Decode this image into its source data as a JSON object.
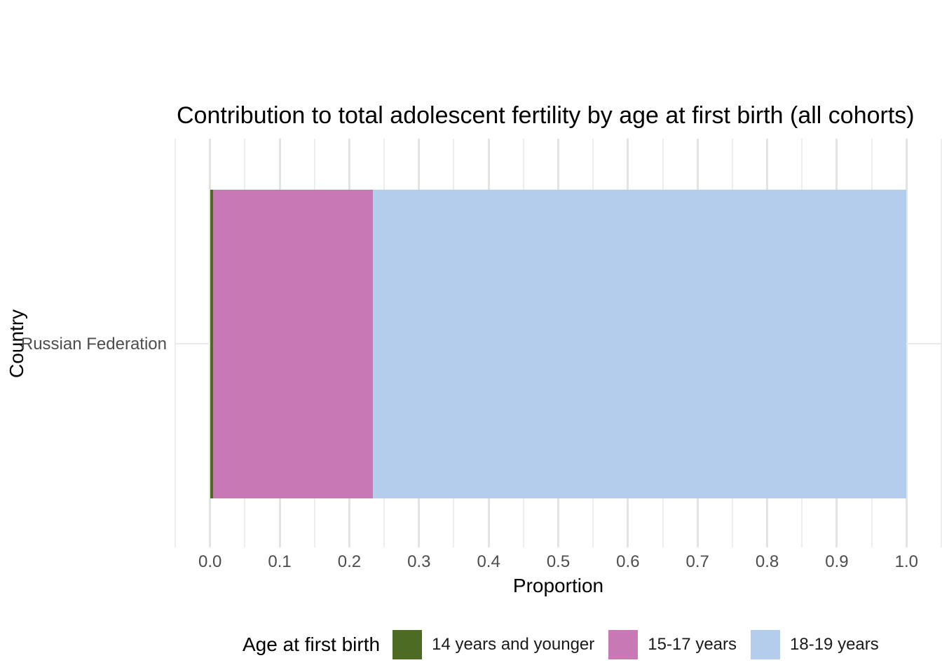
{
  "title": "Contribution to total adolescent fertility by age at first birth (all cohorts)",
  "axes": {
    "x_label": "Proportion",
    "y_label": "Country"
  },
  "legend": {
    "title": "Age at first birth",
    "position": "bottom"
  },
  "colors": {
    "background": "#ffffff",
    "grid_major": "#e3e3e3",
    "grid_minor": "#ededed",
    "tick_text": "#4d4d4d",
    "title_text": "#000000"
  },
  "chart_data": {
    "type": "bar",
    "orientation": "horizontal",
    "stacked": true,
    "title": "Contribution to total adolescent fertility by age at first birth (all cohorts)",
    "xlabel": "Proportion",
    "ylabel": "Country",
    "categories": [
      "Russian Federation"
    ],
    "series": [
      {
        "name": "14 years and younger",
        "values": [
          0.004
        ],
        "color": "#4d6b22"
      },
      {
        "name": "15-17 years",
        "values": [
          0.23
        ],
        "color": "#c878b5"
      },
      {
        "name": "18-19 years",
        "values": [
          0.766
        ],
        "color": "#b5cdec"
      }
    ],
    "xlim": [
      -0.05,
      1.05
    ],
    "x_ticks": [
      "0.0",
      "0.1",
      "0.2",
      "0.3",
      "0.4",
      "0.5",
      "0.6",
      "0.7",
      "0.8",
      "0.9",
      "1.0"
    ],
    "x_tick_step": 0.1,
    "minor_grid_step": 0.05,
    "grid": true,
    "legend_position": "bottom",
    "legend_title": "Age at first birth"
  }
}
